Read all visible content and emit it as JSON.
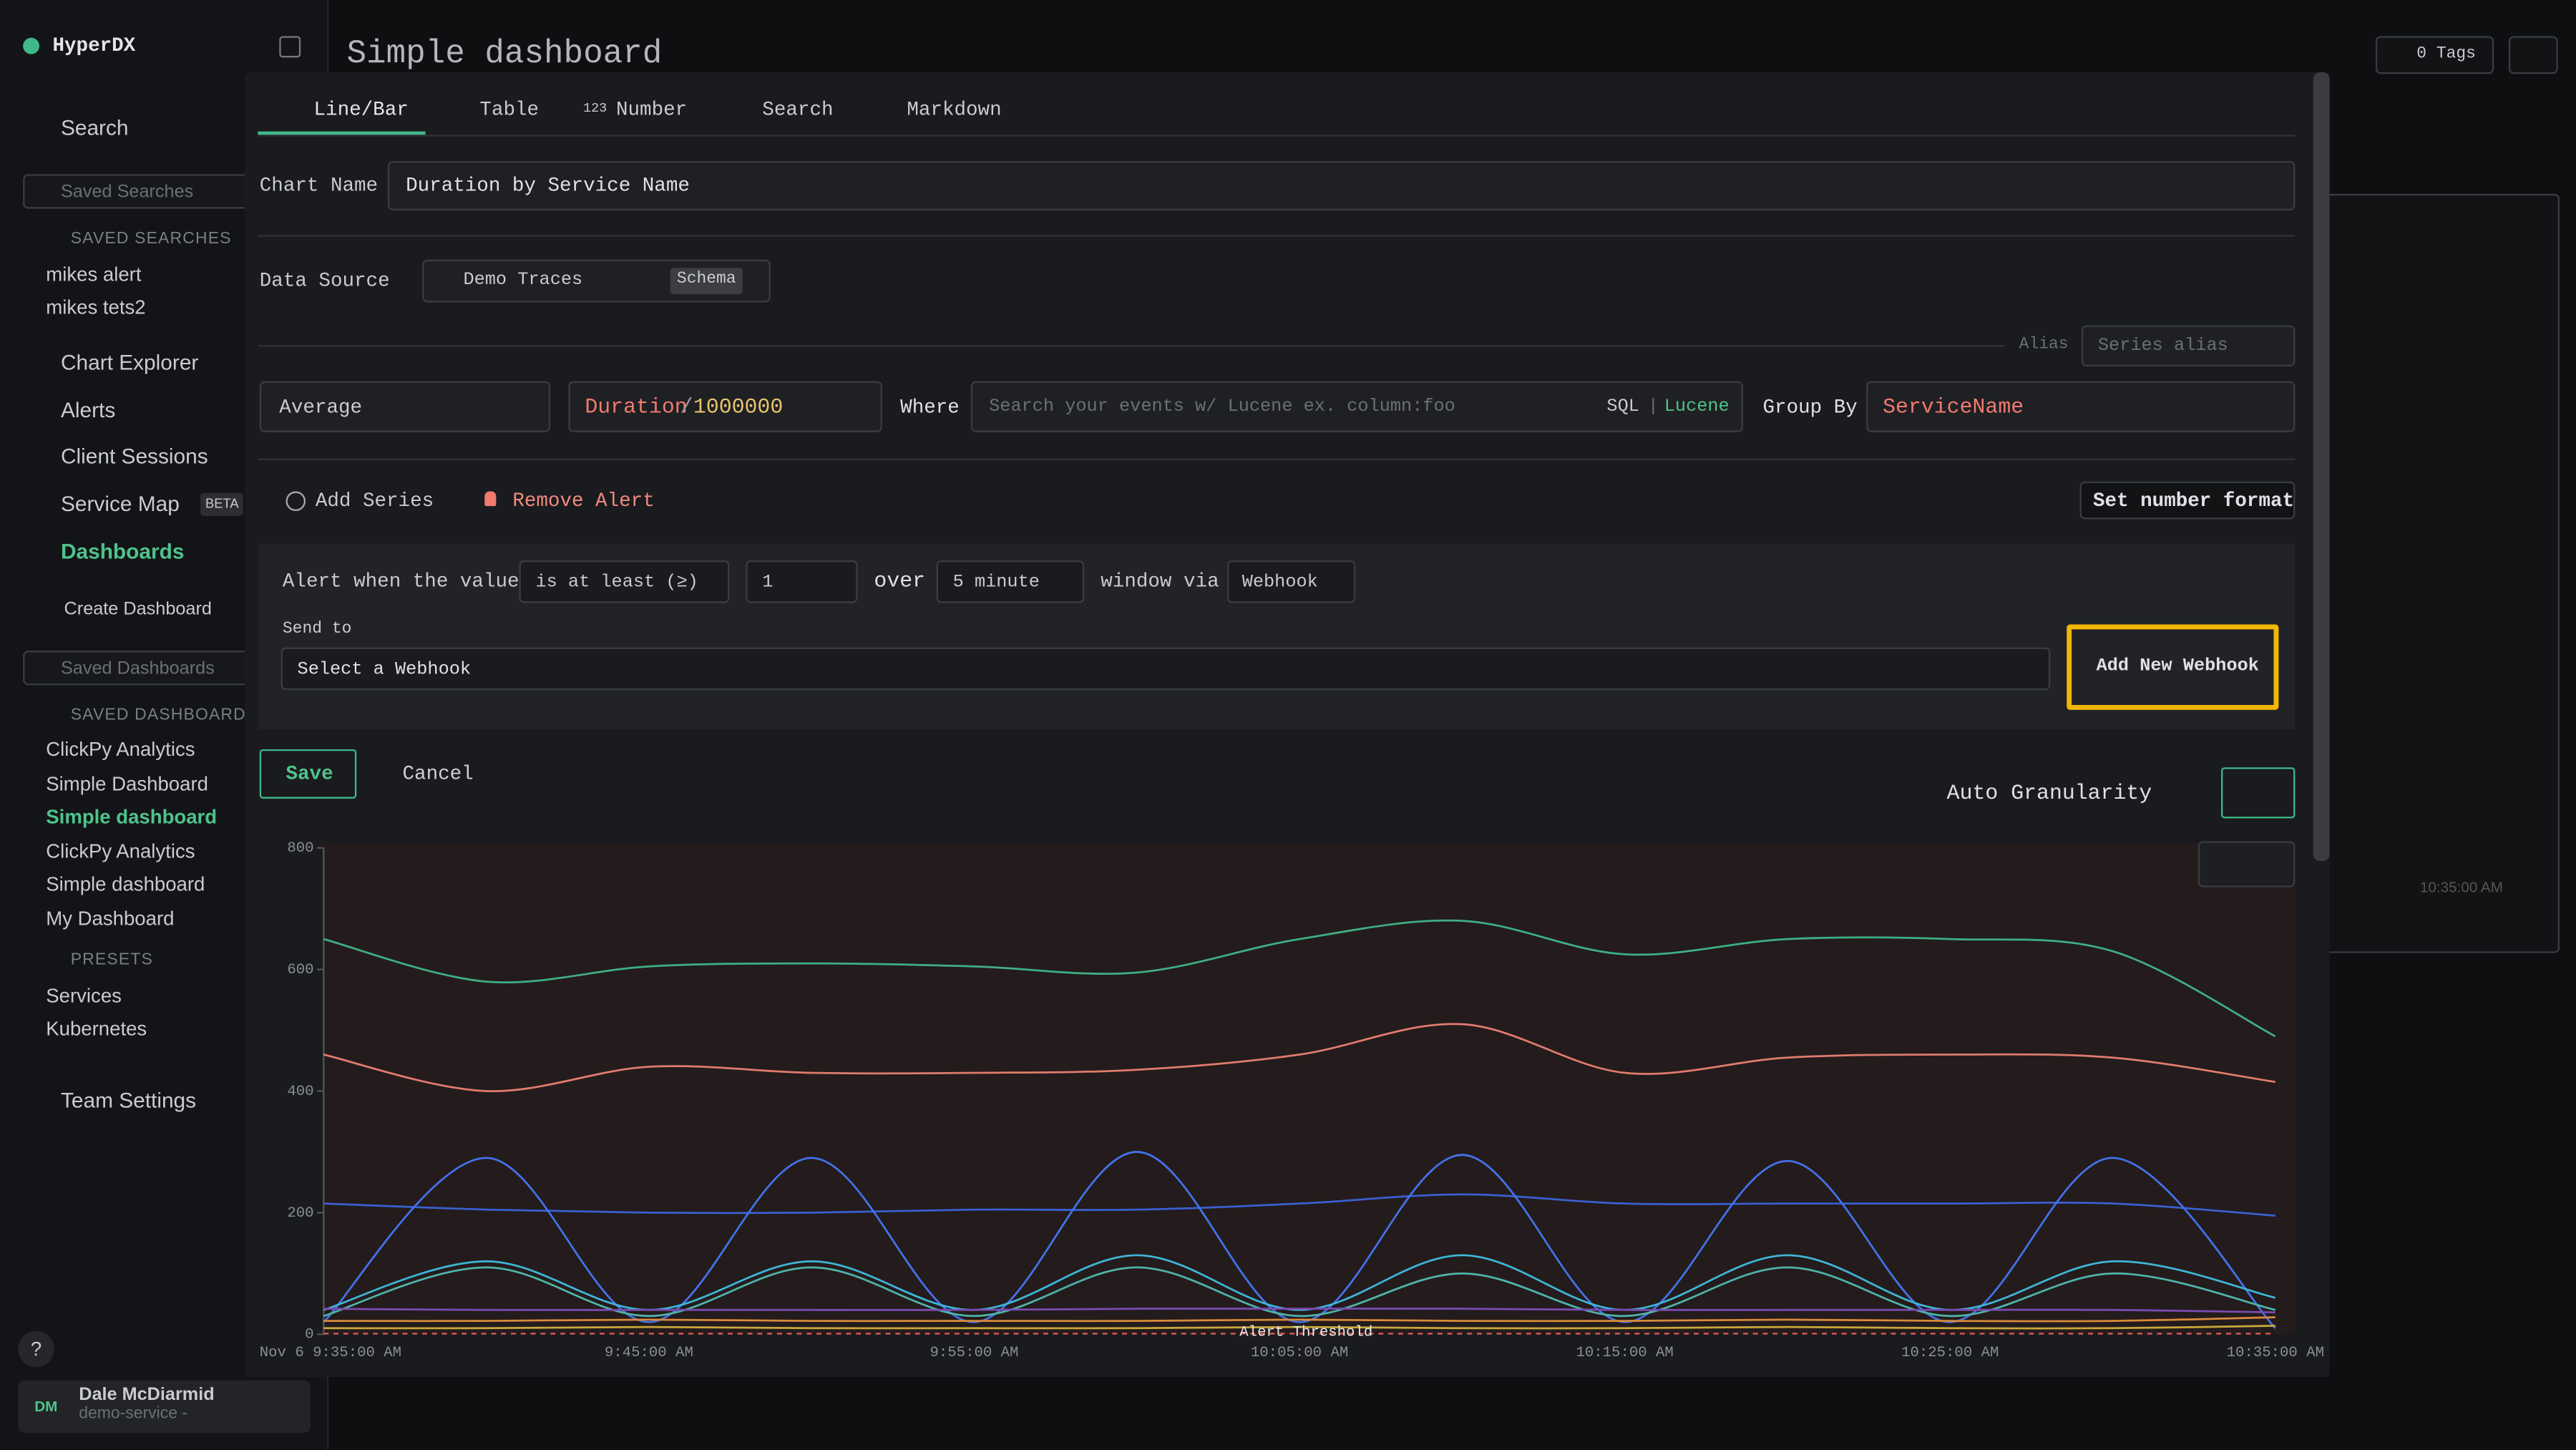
{
  "app": {
    "brand": "HyperDX",
    "search": "Search",
    "saved_searches_placeholder": "Saved Searches",
    "saved_searches_header": "SAVED SEARCHES",
    "saved_searches": [
      "mikes alert",
      "mikes tets2"
    ],
    "nav": [
      "Chart Explorer",
      "Alerts",
      "Client Sessions",
      "Service Map",
      "Dashboards"
    ],
    "beta": "BETA",
    "create_dashboard": "Create Dashboard",
    "saved_dashboards_placeholder": "Saved Dashboards",
    "saved_dashboards_header": "SAVED DASHBOARDS",
    "saved_dashboards": [
      "ClickPy Analytics",
      "Simple Dashboard",
      "Simple dashboard",
      "ClickPy Analytics",
      "Simple dashboard",
      "My Dashboard"
    ],
    "presets_header": "PRESETS",
    "presets": [
      "Services",
      "Kubernetes"
    ],
    "team_settings": "Team Settings",
    "help": "?",
    "user": {
      "initials": "DM",
      "name": "Dale McDiarmid",
      "team": "demo-service -"
    }
  },
  "dashboard": {
    "title": "Simple dashboard",
    "tags": "0 Tags",
    "bg_time": "10:35:00 AM"
  },
  "editor": {
    "tabs": [
      "Line/Bar",
      "Table",
      "Number",
      "Search",
      "Markdown"
    ],
    "number_icon": "123",
    "chart_name_label": "Chart Name",
    "chart_name": "Duration by Service Name",
    "data_source_label": "Data Source",
    "data_source": "Demo Traces",
    "schema": "Schema",
    "alias_label": "Alias",
    "alias_placeholder": "Series alias",
    "aggregation": "Average",
    "expression": {
      "column": "Duration",
      "op": "/",
      "divisor": "1000000"
    },
    "where_label": "Where",
    "where_placeholder": "Search your events w/ Lucene ex. column:foo",
    "sql": "SQL",
    "separator": "|",
    "lucene": "Lucene",
    "group_by_label": "Group By",
    "group_by": "ServiceName",
    "add_series": "Add Series",
    "remove_alert": "Remove Alert",
    "number_format": "Set number format",
    "alert": {
      "prefix": "Alert when the value",
      "condition": "is at least (≥)",
      "threshold": "1",
      "over": "over",
      "window": "5 minute",
      "via": "window via",
      "channel": "Webhook",
      "send_to": "Send to",
      "webhook_placeholder": "Select a Webhook",
      "add_webhook": "Add New Webhook"
    },
    "save": "Save",
    "cancel": "Cancel",
    "granularity": "Auto Granularity"
  },
  "chart_data": {
    "type": "line",
    "categories": [
      "Nov 6 9:35:00 AM",
      null,
      "9:45:00 AM",
      null,
      "9:55:00 AM",
      null,
      "10:05:00 AM",
      null,
      "10:15:00 AM",
      null,
      "10:25:00 AM",
      null,
      "10:35:00 AM"
    ],
    "ylim": [
      0,
      800
    ],
    "yticks": [
      0,
      200,
      400,
      600,
      800
    ],
    "threshold": {
      "label": "Alert Threshold",
      "value": 1
    },
    "series": [
      {
        "color": "#3fae86",
        "values": [
          650,
          580,
          605,
          610,
          605,
          595,
          650,
          680,
          625,
          650,
          650,
          630,
          490
        ]
      },
      {
        "color": "#e07c6e",
        "values": [
          460,
          400,
          440,
          430,
          430,
          435,
          460,
          510,
          430,
          455,
          460,
          455,
          415
        ]
      },
      {
        "color": "#3a60d0",
        "values": [
          215,
          205,
          200,
          200,
          205,
          205,
          215,
          230,
          215,
          215,
          215,
          215,
          195
        ]
      },
      {
        "color": "#4372ea",
        "values": [
          20,
          290,
          20,
          290,
          20,
          300,
          20,
          295,
          20,
          285,
          20,
          290,
          10
        ]
      },
      {
        "color": "#3fb5d6",
        "values": [
          40,
          120,
          40,
          120,
          40,
          130,
          40,
          130,
          40,
          130,
          40,
          120,
          60
        ]
      },
      {
        "color": "#4fb3a8",
        "values": [
          30,
          110,
          30,
          110,
          30,
          110,
          30,
          100,
          30,
          110,
          30,
          100,
          40
        ]
      },
      {
        "color": "#7a4bb0",
        "values": [
          42,
          40,
          40,
          40,
          40,
          42,
          42,
          42,
          40,
          40,
          40,
          40,
          36
        ]
      },
      {
        "color": "#d98a3a",
        "values": [
          22,
          22,
          24,
          22,
          22,
          22,
          24,
          22,
          22,
          24,
          22,
          22,
          28
        ]
      },
      {
        "color": "#c8a83a",
        "values": [
          10,
          10,
          12,
          10,
          10,
          10,
          12,
          10,
          10,
          12,
          10,
          10,
          14
        ]
      }
    ]
  }
}
